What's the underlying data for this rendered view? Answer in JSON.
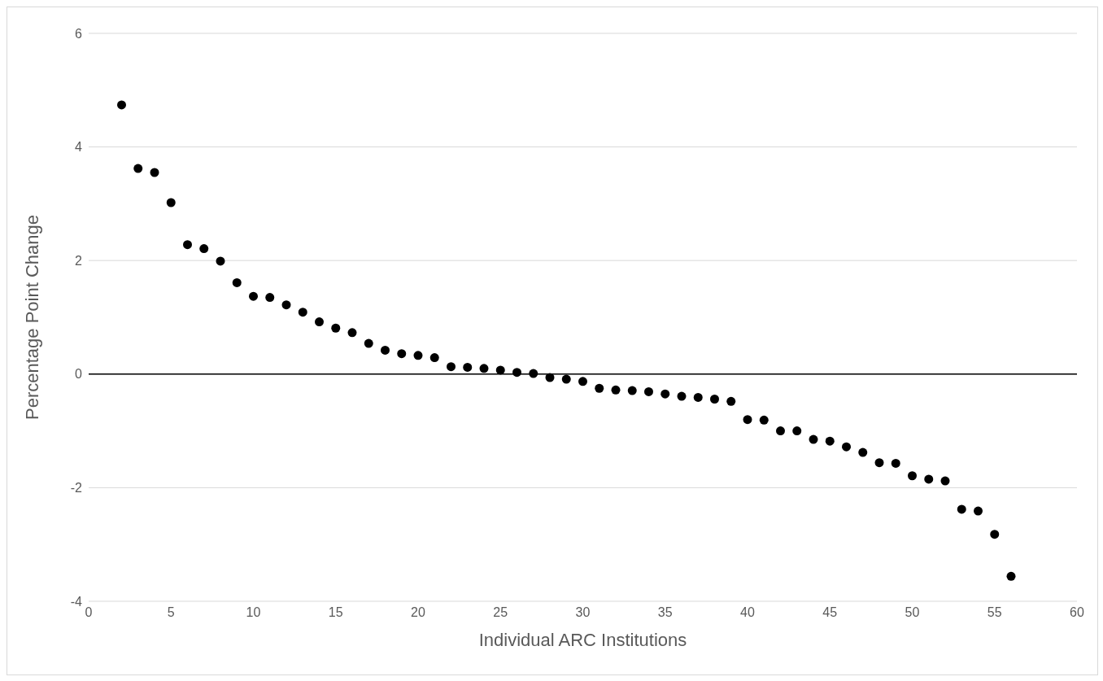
{
  "chart_data": {
    "type": "scatter",
    "xlabel": "Individual ARC Institutions",
    "ylabel": "Percentage Point Change",
    "x": [
      2,
      3,
      4,
      5,
      6,
      7,
      8,
      9,
      10,
      11,
      12,
      13,
      14,
      15,
      16,
      17,
      18,
      19,
      20,
      21,
      22,
      23,
      24,
      25,
      26,
      27,
      28,
      29,
      30,
      31,
      32,
      33,
      34,
      35,
      36,
      37,
      38,
      39,
      40,
      41,
      42,
      43,
      44,
      45,
      46,
      47,
      48,
      49,
      50,
      51,
      52,
      53,
      54,
      55,
      56
    ],
    "series": [
      {
        "color": "#000000",
        "values": [
          4.74,
          3.62,
          3.55,
          3.02,
          2.28,
          2.21,
          1.99,
          1.61,
          1.37,
          1.35,
          1.22,
          1.09,
          0.92,
          0.81,
          0.73,
          0.54,
          0.42,
          0.36,
          0.33,
          0.29,
          0.13,
          0.12,
          0.1,
          0.07,
          0.03,
          0.01,
          -0.06,
          -0.09,
          -0.13,
          -0.25,
          -0.28,
          -0.29,
          -0.31,
          -0.35,
          -0.39,
          -0.41,
          -0.44,
          -0.48,
          -0.8,
          -0.81,
          -1.0,
          -1.0,
          -1.15,
          -1.18,
          -1.28,
          -1.38,
          -1.56,
          -1.57,
          -1.79,
          -1.85,
          -1.88,
          -2.38,
          -2.41,
          -2.82,
          -3.56
        ]
      }
    ],
    "xlim": [
      0,
      60
    ],
    "xticks": [
      0,
      5,
      10,
      15,
      20,
      25,
      30,
      35,
      40,
      45,
      50,
      55,
      60
    ],
    "ylim": [
      -4,
      6
    ],
    "yticks": [
      -4,
      -2,
      0,
      2,
      4,
      6
    ],
    "grid": "y",
    "marker": "circle",
    "legend": false,
    "ref_lines": [
      {
        "axis": "y",
        "value": 0,
        "color": "#000000"
      }
    ]
  }
}
